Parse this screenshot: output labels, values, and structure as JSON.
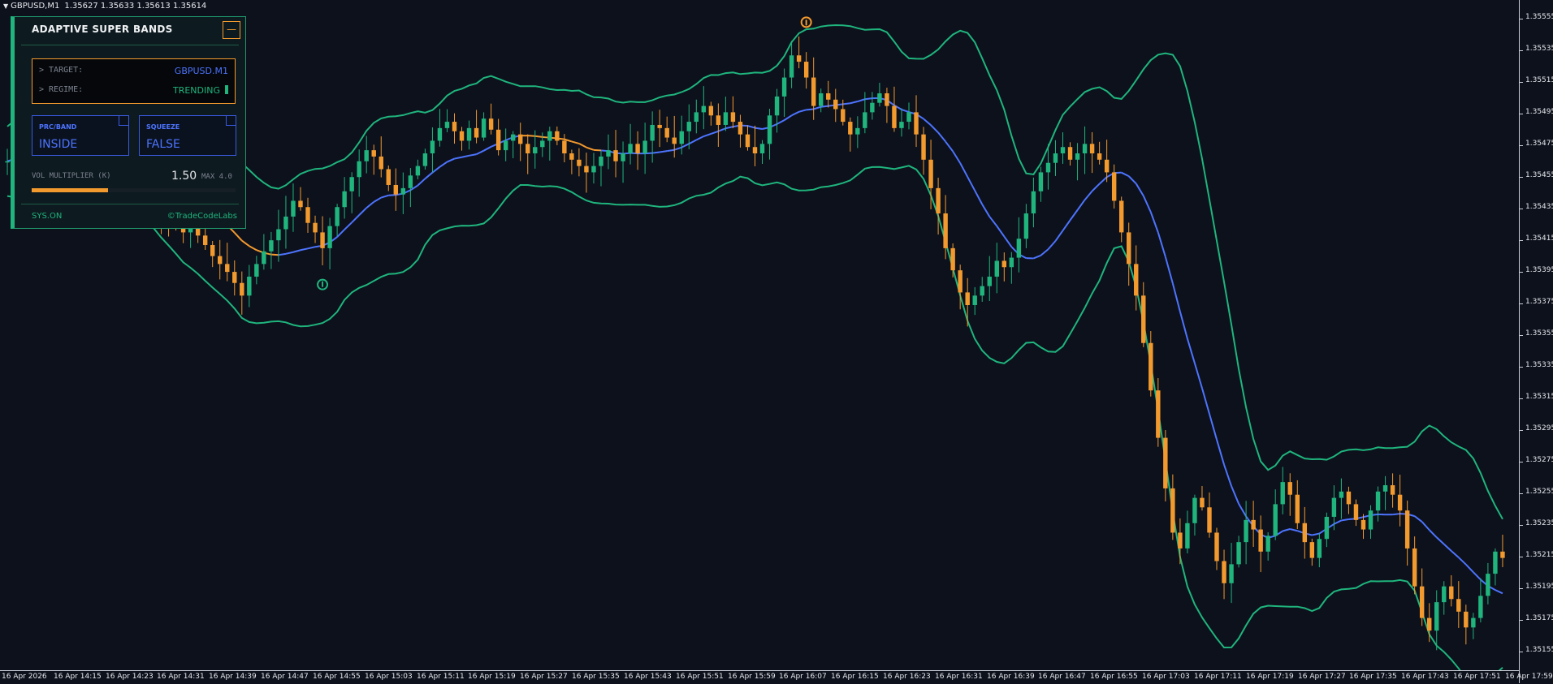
{
  "header": {
    "symbol": "GBPUSD,M1",
    "prices": "1.35627 1.35633 1.35613 1.35614"
  },
  "panel": {
    "title": "ADAPTIVE SUPER BANDS",
    "minimize_label": "—",
    "target_label": "> TARGET:",
    "target_value": "GBPUSD.M1",
    "regime_label": "> REGIME:",
    "regime_value": "TRENDING",
    "prc_label": "PRC/BAND",
    "prc_value": "INSIDE",
    "squeeze_label": "SQUEEZE",
    "squeeze_value": "FALSE",
    "vol_label": "VOL MULTIPLIER (K)",
    "vol_value": "1.50",
    "vol_max": "MAX 4.0",
    "vol_fraction": 0.375,
    "status": "SYS.ON",
    "brand": "©TradeCodeLabs"
  },
  "colors": {
    "background": "#0d111c",
    "bull": "#1fb57d",
    "bear": "#f39a2e",
    "band": "#1fb57d",
    "midline": "#4d74ff",
    "accent": "#f39a2e"
  },
  "chart_data": {
    "type": "candlestick",
    "symbol": "GBPUSD",
    "timeframe": "M1",
    "ylim": [
      1.35145,
      1.35565
    ],
    "y_ticks": [
      "1.35555",
      "1.35535",
      "1.35515",
      "1.35495",
      "1.35475",
      "1.35455",
      "1.35435",
      "1.35415",
      "1.35395",
      "1.35375",
      "1.35355",
      "1.35335",
      "1.35315",
      "1.35295",
      "1.35275",
      "1.35255",
      "1.35235",
      "1.35215",
      "1.35195",
      "1.35175",
      "1.35155"
    ],
    "x_ticks": [
      "16 Apr 2026",
      "16 Apr 14:15",
      "16 Apr 14:23",
      "16 Apr 14:31",
      "16 Apr 14:39",
      "16 Apr 14:47",
      "16 Apr 14:55",
      "16 Apr 15:03",
      "16 Apr 15:11",
      "16 Apr 15:19",
      "16 Apr 15:27",
      "16 Apr 15:35",
      "16 Apr 15:43",
      "16 Apr 15:51",
      "16 Apr 15:59",
      "16 Apr 16:07",
      "16 Apr 16:15",
      "16 Apr 16:23",
      "16 Apr 16:31",
      "16 Apr 16:39",
      "16 Apr 16:47",
      "16 Apr 16:55",
      "16 Apr 17:03",
      "16 Apr 17:11",
      "16 Apr 17:19",
      "16 Apr 17:27",
      "16 Apr 17:35",
      "16 Apr 17:43",
      "16 Apr 17:51",
      "16 Apr 17:59"
    ],
    "close": [
      1.35465,
      1.35468,
      1.35462,
      1.3547,
      1.35472,
      1.35465,
      1.35468,
      1.3547,
      1.35464,
      1.35466,
      1.35472,
      1.35468,
      1.3547,
      1.35466,
      1.3547,
      1.35467,
      1.35462,
      1.35455,
      1.3545,
      1.3544,
      1.35436,
      1.35432,
      1.3543,
      1.35426,
      1.3542,
      1.35425,
      1.35418,
      1.35412,
      1.35405,
      1.354,
      1.35395,
      1.35388,
      1.3538,
      1.35392,
      1.354,
      1.35408,
      1.35415,
      1.35422,
      1.3543,
      1.3544,
      1.35436,
      1.35426,
      1.3542,
      1.3541,
      1.35424,
      1.35436,
      1.35446,
      1.35455,
      1.35465,
      1.35472,
      1.35468,
      1.3546,
      1.3545,
      1.35444,
      1.35448,
      1.35456,
      1.35462,
      1.3547,
      1.35478,
      1.35486,
      1.3549,
      1.35484,
      1.35478,
      1.35486,
      1.3548,
      1.35492,
      1.35485,
      1.35472,
      1.35478,
      1.35482,
      1.35476,
      1.3547,
      1.35474,
      1.35478,
      1.35484,
      1.35478,
      1.3547,
      1.35466,
      1.35462,
      1.35458,
      1.35462,
      1.35468,
      1.35472,
      1.35465,
      1.3547,
      1.35476,
      1.3547,
      1.35478,
      1.35488,
      1.35486,
      1.3548,
      1.35476,
      1.35484,
      1.3549,
      1.35496,
      1.355,
      1.35494,
      1.35488,
      1.35496,
      1.3549,
      1.35482,
      1.35474,
      1.3547,
      1.35476,
      1.35494,
      1.35506,
      1.35518,
      1.35532,
      1.35528,
      1.35518,
      1.355,
      1.35508,
      1.35504,
      1.35498,
      1.3549,
      1.35482,
      1.35486,
      1.35496,
      1.35502,
      1.35508,
      1.355,
      1.35486,
      1.3549,
      1.35496,
      1.35482,
      1.35466,
      1.35448,
      1.35432,
      1.3541,
      1.35396,
      1.35382,
      1.35374,
      1.3538,
      1.35386,
      1.35392,
      1.35402,
      1.35398,
      1.35404,
      1.35416,
      1.35432,
      1.35446,
      1.35458,
      1.35464,
      1.3547,
      1.35474,
      1.35466,
      1.3547,
      1.35476,
      1.3547,
      1.35466,
      1.35458,
      1.3544,
      1.3542,
      1.354,
      1.3538,
      1.3535,
      1.3532,
      1.3529,
      1.35258,
      1.3523,
      1.3522,
      1.35236,
      1.35252,
      1.35246,
      1.3523,
      1.35212,
      1.35198,
      1.3521,
      1.35224,
      1.35238,
      1.35232,
      1.35218,
      1.35228,
      1.35248,
      1.35262,
      1.35254,
      1.35236,
      1.35224,
      1.35214,
      1.35226,
      1.3524,
      1.35252,
      1.35256,
      1.35248,
      1.35238,
      1.35232,
      1.35244,
      1.35256,
      1.3526,
      1.35254,
      1.35244,
      1.3522,
      1.35196,
      1.35176,
      1.35168,
      1.35186,
      1.35196,
      1.35188,
      1.3518,
      1.3517,
      1.35176,
      1.3519,
      1.35204,
      1.35218,
      1.35214
    ]
  }
}
